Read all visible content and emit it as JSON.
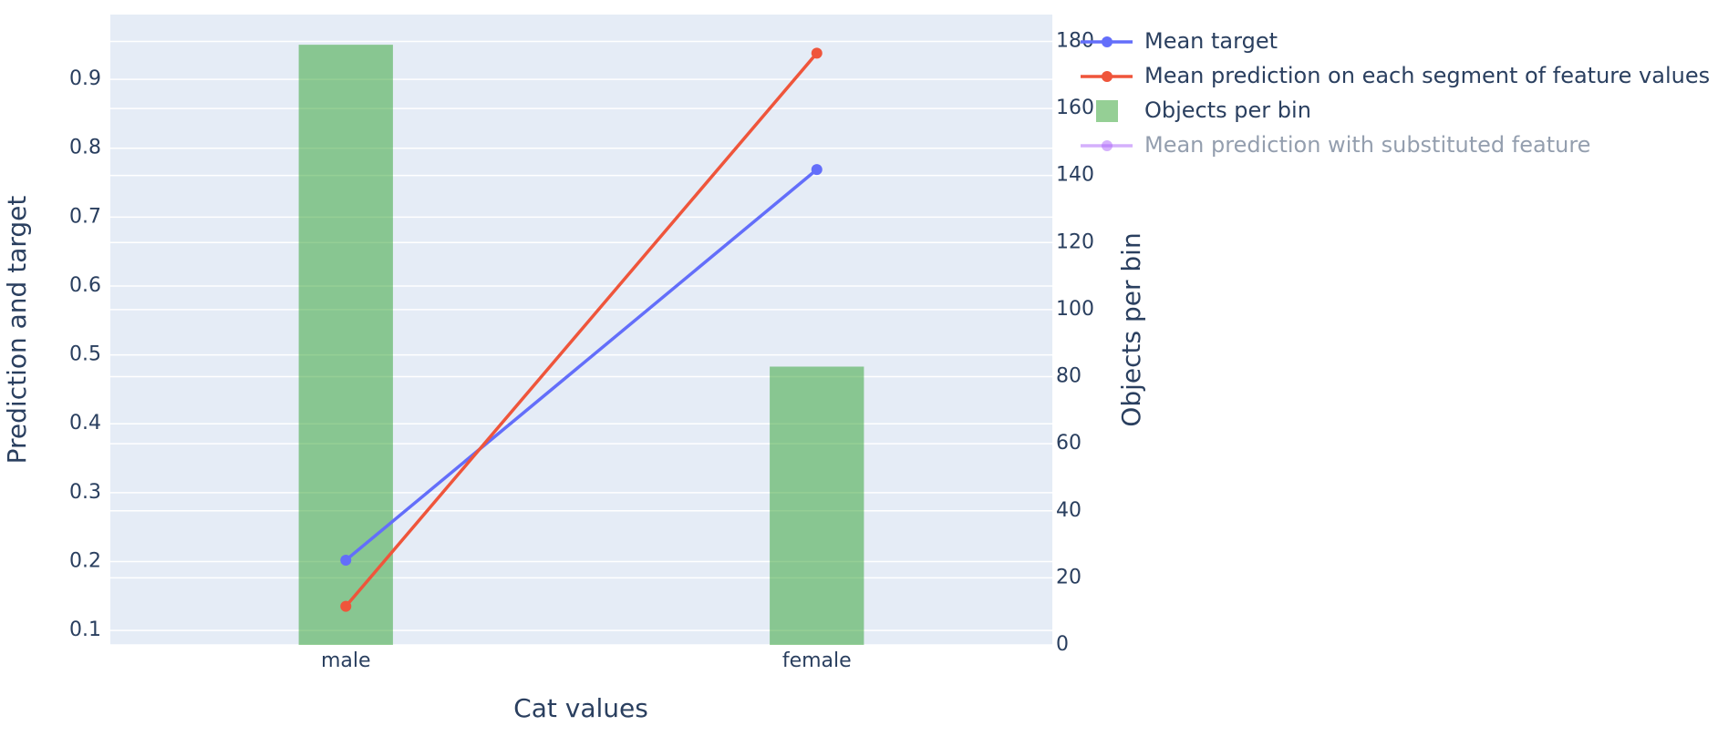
{
  "chart_data": {
    "type": "combo",
    "xlabel": "Cat values",
    "ylabel": "Prediction and target",
    "y2label": "Objects per bin",
    "categories": [
      "male",
      "female"
    ],
    "ylim": [
      0.079,
      0.994
    ],
    "yticks": [
      0.1,
      0.2,
      0.3,
      0.4,
      0.5,
      0.6,
      0.7,
      0.8,
      0.9
    ],
    "y2lim": [
      0,
      188
    ],
    "y2ticks": [
      0,
      20,
      40,
      60,
      80,
      100,
      120,
      140,
      160,
      180
    ],
    "grid": true,
    "legend": "outside-right",
    "series": [
      {
        "name": "Mean target",
        "type": "line",
        "color": "#636efa",
        "values": [
          0.202,
          0.769
        ]
      },
      {
        "name": "Mean prediction on each segment of feature values",
        "type": "line",
        "color": "#ef553b",
        "values": [
          0.135,
          0.938
        ]
      },
      {
        "name": "Objects per bin",
        "type": "bar",
        "color": "#2ca02c",
        "axis": "y2",
        "values": [
          179,
          83
        ]
      },
      {
        "name": "Mean prediction with substituted feature",
        "type": "line",
        "color": "#ab63fa",
        "visible": "legendonly"
      }
    ]
  }
}
